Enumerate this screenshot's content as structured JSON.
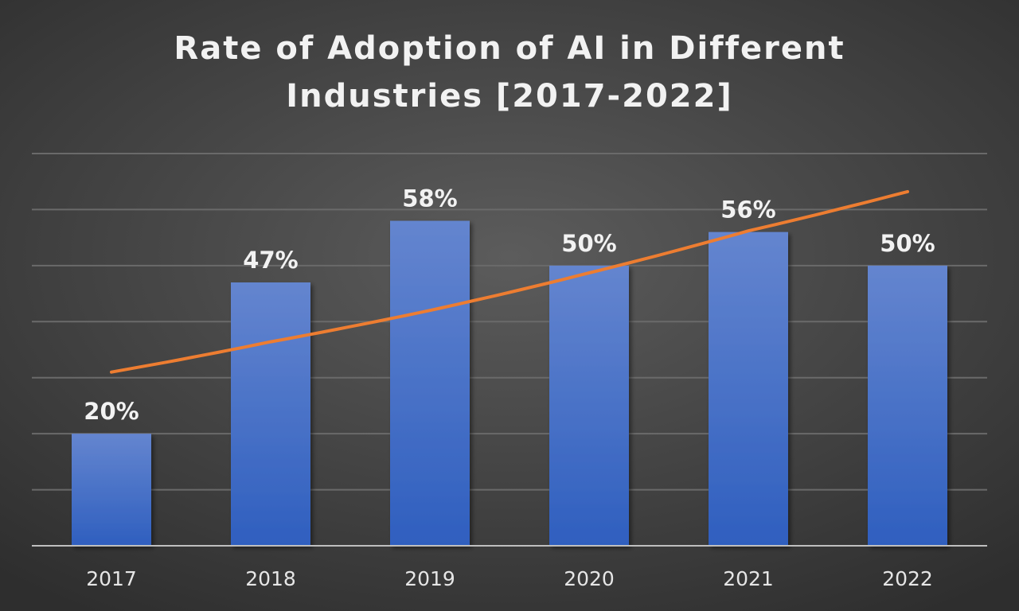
{
  "chart_data": {
    "type": "bar",
    "title_lines": [
      "Rate of Adoption of AI in Different",
      "Industries [2017-2022]"
    ],
    "categories": [
      "2017",
      "2018",
      "2019",
      "2020",
      "2021",
      "2022"
    ],
    "values": [
      20,
      47,
      58,
      50,
      56,
      50
    ],
    "data_labels": [
      "20%",
      "47%",
      "58%",
      "50%",
      "56%",
      "50%"
    ],
    "ylim": [
      0,
      70
    ],
    "gridlines": true,
    "legend": "none",
    "trendline": {
      "type": "exponential",
      "values": [
        31.0,
        36.4,
        42.0,
        48.7,
        56.2,
        63.2
      ]
    },
    "colors": {
      "bar_top": "#6485cf",
      "bar_bottom": "#2f5fbf",
      "trendline": "#ed7d31",
      "gridline": "#6a6a6a",
      "axis": "#bfbfbf"
    }
  }
}
